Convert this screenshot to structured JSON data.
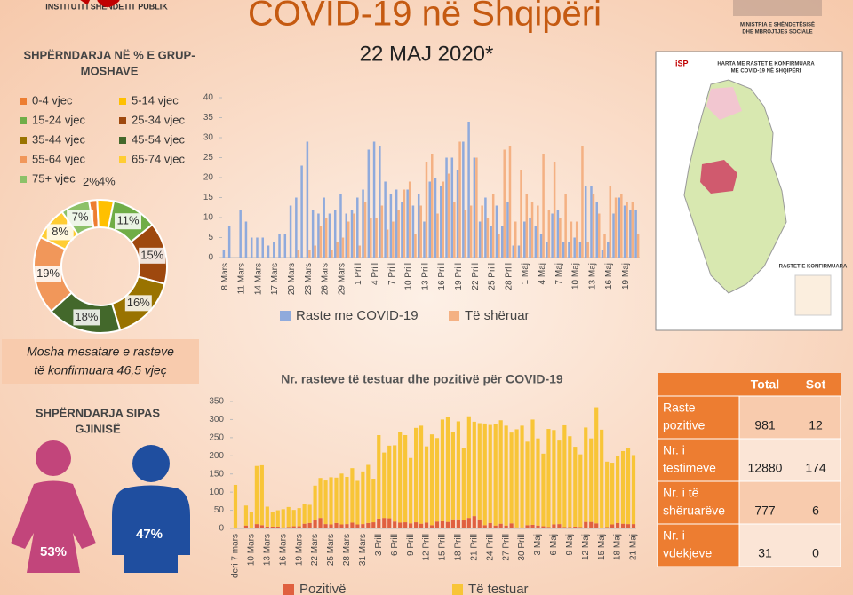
{
  "header": {
    "title": "COVID-19 në Shqipëri",
    "date": "22 MAJ 2020*",
    "logo": "INSTITUTI I SHËNDETIT PUBLIK",
    "ministry": [
      "MINISTRIA E SHËNDETËSISË",
      "DHE MBROJTJES SOCIALE"
    ]
  },
  "chart_data": [
    {
      "type": "pie",
      "title": [
        "SHPËRNDARJA NË % E GRUP-",
        "MOSHAVE"
      ],
      "categories": [
        "0-4 vjec",
        "5-14 vjec",
        "15-24 vjec",
        "25-34 vjec",
        "35-44 vjec",
        "45-54 vjec",
        "55-64 vjec",
        "65-74 vjec",
        "75+ vjec"
      ],
      "values": [
        2,
        4,
        11,
        15,
        16,
        18,
        19,
        8,
        7
      ],
      "value_labels": [
        "2%",
        "4%",
        "11%",
        "15%",
        "16%",
        "18%",
        "19%",
        "8%",
        "7%"
      ],
      "colors": [
        "#ed7d31",
        "#ffc000",
        "#70ad47",
        "#9e480e",
        "#997300",
        "#43682b",
        "#f1975a",
        "#ffcd33",
        "#8cc168"
      ],
      "donut": true
    },
    {
      "type": "bar",
      "stacked": false,
      "ylim": [
        0,
        40
      ],
      "yticks": [
        0,
        5,
        10,
        15,
        20,
        25,
        30,
        35,
        40
      ],
      "categories": [
        "8 Mars",
        null,
        null,
        "11 Mars",
        null,
        null,
        "14 Mars",
        null,
        null,
        "17 Mars",
        null,
        null,
        "20 Mars",
        null,
        null,
        "23 Mars",
        null,
        null,
        "26 Mars",
        null,
        null,
        "29 Mars",
        null,
        null,
        "1 Prill",
        null,
        null,
        "4 Prill",
        null,
        null,
        "7 Prill",
        null,
        null,
        "10 Prill",
        null,
        null,
        "13 Prill",
        null,
        null,
        "16 Prill",
        null,
        null,
        "19 Prill",
        null,
        null,
        "22 Prill",
        null,
        null,
        "25 Prill",
        null,
        null,
        "28 Prill",
        null,
        null,
        "1 Maj",
        null,
        null,
        "4 Maj",
        null,
        null,
        "7 Maj",
        null,
        null,
        "10 Maj",
        null,
        null,
        "13 Maj",
        null,
        null,
        "16 Maj",
        null,
        null,
        "19 Maj",
        null,
        null
      ],
      "series": [
        {
          "name": "Raste me COVID-19",
          "color": "#8faadc",
          "values": [
            2,
            8,
            0,
            12,
            9,
            5,
            5,
            5,
            3,
            4,
            6,
            6,
            13,
            15,
            23,
            29,
            12,
            11,
            15,
            11,
            12,
            16,
            11,
            12,
            15,
            17,
            27,
            29,
            28,
            19,
            16,
            17,
            14,
            17,
            13,
            16,
            9,
            19,
            20,
            18,
            25,
            25,
            22,
            29,
            34,
            25,
            9,
            15,
            8,
            13,
            8,
            14,
            3,
            3,
            9,
            10,
            8,
            6,
            4,
            11,
            12,
            4,
            4,
            5,
            4,
            18,
            18,
            14,
            2,
            4,
            11,
            15,
            13,
            12,
            12
          ]
        },
        {
          "name": "Të shëruar",
          "color": "#f4b183",
          "values": [
            0,
            0,
            0,
            0,
            0,
            0,
            0,
            0,
            0,
            0,
            0,
            0,
            0,
            2,
            0,
            2,
            3,
            8,
            10,
            2,
            4,
            5,
            9,
            11,
            3,
            14,
            10,
            10,
            13,
            7,
            9,
            12,
            17,
            19,
            6,
            13,
            24,
            26,
            11,
            19,
            21,
            14,
            29,
            12,
            13,
            25,
            13,
            10,
            16,
            6,
            27,
            28,
            9,
            22,
            16,
            14,
            13,
            26,
            12,
            24,
            10,
            16,
            9,
            9,
            28,
            4,
            16,
            11,
            6,
            18,
            15,
            16,
            14,
            14,
            6
          ]
        }
      ]
    },
    {
      "type": "bar",
      "stacked": true,
      "title": "Nr. rasteve të testuar dhe pozitivë për COVID-19",
      "ylim": [
        0,
        350
      ],
      "yticks": [
        0,
        50,
        100,
        150,
        200,
        250,
        300,
        350
      ],
      "categories": [
        "deri 7 mars",
        null,
        null,
        "10 Mars",
        null,
        null,
        "13 Mars",
        null,
        null,
        "16 Mars",
        null,
        null,
        "19 Mars",
        null,
        null,
        "22 Mars",
        null,
        null,
        "25 Mars",
        null,
        null,
        "28 Mars",
        null,
        null,
        "31 Mars",
        null,
        null,
        "3 Prill",
        null,
        null,
        "6 Prill",
        null,
        null,
        "9 Prill",
        null,
        null,
        "12 Prill",
        null,
        null,
        "15 Prill",
        null,
        null,
        "18 Prill",
        null,
        null,
        "21 Prill",
        null,
        null,
        "24 Prill",
        null,
        null,
        "27 Prill",
        null,
        null,
        "30 Prill",
        null,
        null,
        "3 Maj",
        null,
        null,
        "6 Maj",
        null,
        null,
        "9 Maj",
        null,
        null,
        "12 Maj",
        null,
        null,
        "15 Maj",
        null,
        null,
        "18 Maj",
        null,
        null,
        "21 Maj"
      ],
      "series": [
        {
          "name": "Pozitivë",
          "color": "#e0603f",
          "values": [
            0,
            2,
            8,
            0,
            12,
            9,
            5,
            5,
            5,
            3,
            4,
            6,
            6,
            13,
            15,
            23,
            29,
            12,
            11,
            15,
            11,
            12,
            16,
            11,
            12,
            15,
            17,
            27,
            29,
            28,
            19,
            16,
            17,
            14,
            17,
            13,
            16,
            9,
            19,
            20,
            18,
            25,
            25,
            22,
            29,
            34,
            25,
            9,
            15,
            8,
            13,
            8,
            14,
            3,
            3,
            9,
            10,
            8,
            6,
            4,
            11,
            12,
            4,
            4,
            5,
            4,
            18,
            18,
            14,
            2,
            4,
            11,
            15,
            13,
            12,
            12
          ]
        },
        {
          "name": "Të testuar",
          "color": "#f8c537",
          "values": [
            120,
            0,
            55,
            45,
            160,
            165,
            55,
            40,
            45,
            50,
            55,
            45,
            50,
            55,
            50,
            95,
            110,
            120,
            130,
            125,
            140,
            130,
            150,
            120,
            145,
            160,
            120,
            230,
            180,
            200,
            210,
            250,
            240,
            180,
            260,
            270,
            210,
            250,
            230,
            280,
            290,
            240,
            270,
            200,
            280,
            260,
            265,
            280,
            270,
            280,
            285,
            275,
            250,
            270,
            280,
            230,
            290,
            240,
            200,
            270,
            260,
            230,
            280,
            250,
            220,
            200,
            260,
            230,
            320,
            270,
            180,
            170,
            185,
            200,
            210,
            190
          ]
        }
      ]
    },
    {
      "type": "pictogram",
      "title": [
        "SHPËRNDARJA SIPAS",
        "GJINISË"
      ],
      "values": [
        53,
        47
      ],
      "value_labels": [
        "53%",
        "47%"
      ],
      "colors": [
        "#c2457b",
        "#1f4e9f"
      ]
    }
  ],
  "note": [
    "Mosha mesatare e rasteve",
    "të konfirmuara 46,5 vjeç"
  ],
  "table": {
    "columns": [
      "Total",
      "Sot"
    ],
    "rows": [
      {
        "label": [
          "Raste",
          "pozitive"
        ],
        "values": [
          981,
          12
        ]
      },
      {
        "label": [
          "Nr. i",
          "testimeve"
        ],
        "values": [
          12880,
          174
        ]
      },
      {
        "label": [
          "Nr. i të",
          "shëruarëve"
        ],
        "values": [
          777,
          6
        ]
      },
      {
        "label": [
          "Nr. i",
          "vdekjeve"
        ],
        "values": [
          31,
          0
        ]
      }
    ]
  },
  "map": {
    "title": [
      "HARTA ME RASTET E KONFIRMUARA",
      "ME COVID-19 NË SHQIPËRI"
    ],
    "legend_title": "RASTET E KONFIRMUARA"
  }
}
